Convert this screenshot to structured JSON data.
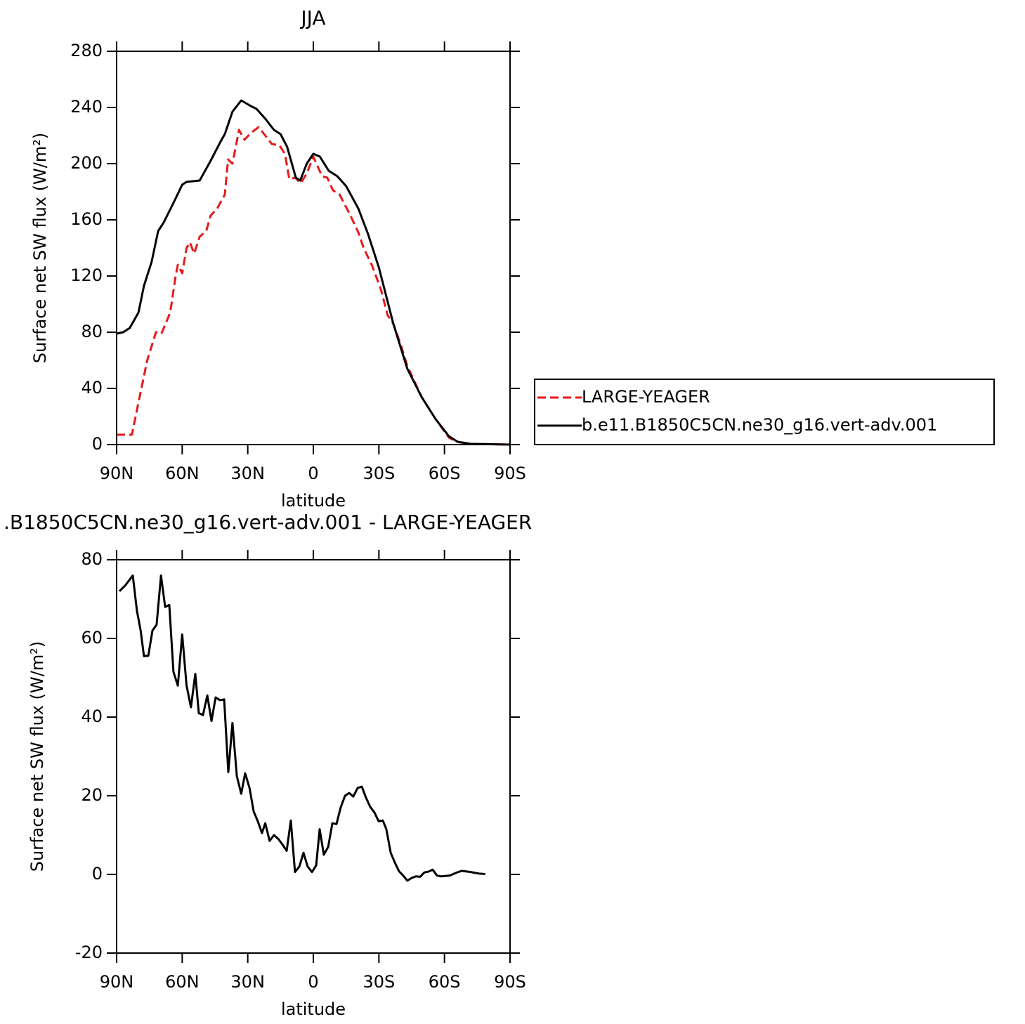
{
  "chart_data": [
    {
      "type": "line",
      "title": "JJA",
      "x_label": "latitude",
      "y_label": "Surface net SW flux (W/m²)",
      "xlim": [
        90,
        -90
      ],
      "xticks": [
        {
          "value": 90,
          "label": "90N"
        },
        {
          "value": 60,
          "label": "60N"
        },
        {
          "value": 30,
          "label": "30N"
        },
        0,
        {
          "value": -30,
          "label": "30S"
        },
        {
          "value": -60,
          "label": "60S"
        },
        {
          "value": -90,
          "label": "90S"
        }
      ],
      "ylim": [
        0,
        280
      ],
      "yticks": [
        0,
        40,
        80,
        120,
        160,
        200,
        240,
        280
      ],
      "legend": "right",
      "series": [
        {
          "name": "LARGE-YEAGER",
          "color": "#e41a1c",
          "style": "dashed",
          "x": [
            90,
            85,
            83,
            80,
            76,
            72,
            69.5,
            66,
            65.2,
            63,
            62,
            60,
            58,
            56.5,
            54.5,
            52,
            49,
            47,
            44,
            40.5,
            39,
            37,
            34,
            31.5,
            28.5,
            25,
            22,
            19,
            15.5,
            13,
            11,
            8.3,
            5.8,
            3,
            0,
            -4,
            -6.4,
            -9,
            -12,
            -17,
            -20.6,
            -23,
            -27,
            -31,
            -34,
            -36.6,
            -40,
            -43,
            -49.5,
            -56,
            -62,
            -65.6,
            -72,
            -90
          ],
          "values": [
            7,
            7,
            7,
            30,
            60,
            80,
            79,
            92,
            97,
            120,
            128,
            122,
            140,
            144,
            136,
            148,
            152,
            163,
            168,
            178,
            203,
            200,
            224,
            217,
            222,
            226,
            220,
            214,
            213,
            207,
            189,
            190,
            186,
            193,
            205,
            191,
            190,
            181,
            178,
            163,
            151,
            140,
            127,
            110,
            92,
            86,
            71,
            56,
            34,
            18,
            5,
            2,
            0.5,
            0
          ]
        },
        {
          "name": "b.e11.B1850C5CN.ne30_g16.vert-adv.001",
          "color": "#000000",
          "style": "solid",
          "x": [
            90,
            87,
            84,
            80,
            77.5,
            74,
            71,
            68.5,
            64,
            60,
            58,
            52,
            47,
            42,
            40.5,
            37,
            33,
            28.6,
            26,
            22,
            18,
            15,
            12,
            8,
            6,
            3,
            0,
            -3,
            -7,
            -11,
            -15,
            -20.6,
            -25,
            -30,
            -36.6,
            -43,
            -49.5,
            -56,
            -62,
            -66,
            -72,
            -90
          ],
          "values": [
            79,
            80,
            83,
            94,
            113,
            130,
            152,
            158,
            172,
            185,
            187,
            188,
            202,
            217,
            221,
            237,
            245,
            241,
            239,
            232,
            224,
            221,
            212,
            190,
            188,
            200,
            207,
            205,
            195,
            191,
            184,
            168,
            150,
            126,
            86,
            54,
            34,
            18,
            6,
            2,
            0.5,
            0
          ]
        }
      ]
    },
    {
      "type": "line",
      "title": ".B1850C5CN.ne30_g16.vert-adv.001 - LARGE-YEAGER",
      "x_label": "latitude",
      "y_label": "Surface net SW flux (W/m²)",
      "xlim": [
        90,
        -90
      ],
      "xticks": [
        {
          "value": 90,
          "label": "90N"
        },
        {
          "value": 60,
          "label": "60N"
        },
        {
          "value": 30,
          "label": "30N"
        },
        0,
        {
          "value": -30,
          "label": "30S"
        },
        {
          "value": -60,
          "label": "60S"
        },
        {
          "value": -90,
          "label": "90S"
        }
      ],
      "ylim": [
        -20,
        80
      ],
      "yticks": [
        -20,
        0,
        20,
        40,
        60,
        80
      ],
      "series": [
        {
          "color": "#000000",
          "style": "solid",
          "x": [
            88.7,
            86,
            82.6,
            80.7,
            79,
            77.5,
            75.5,
            73.6,
            71.7,
            69.7,
            67.8,
            65.9,
            64,
            62,
            60,
            58,
            56,
            54,
            52.4,
            50.5,
            48.5,
            46.6,
            44.7,
            42.7,
            40.8,
            38.9,
            37,
            35,
            33,
            31.2,
            29.2,
            27.3,
            25.4,
            23.5,
            22,
            20,
            18,
            16,
            14,
            12.2,
            10.3,
            8.4,
            6.4,
            4.5,
            2.6,
            0.6,
            -1.3,
            -2.9,
            -4.8,
            -6.8,
            -8.7,
            -10.6,
            -12.5,
            -14.5,
            -16.4,
            -18.3,
            -20.3,
            -22.2,
            -24.1,
            -26,
            -28,
            -29.9,
            -31.8,
            -33.4,
            -35.4,
            -37.3,
            -39.2,
            -41.1,
            -43,
            -45,
            -46.9,
            -48.9,
            -50.8,
            -52.7,
            -54.6,
            -56.6,
            -58.5,
            -62.4,
            -66.2,
            -68,
            -72,
            -75.9,
            -78.7
          ],
          "values": [
            72,
            73.5,
            76,
            67,
            62,
            55.5,
            55.6,
            62,
            63.5,
            76,
            68,
            68.5,
            51.5,
            48,
            61,
            48,
            42.5,
            51,
            41,
            40.5,
            45.5,
            39,
            45,
            44.3,
            44.5,
            26,
            38.5,
            25,
            20.5,
            25.7,
            22,
            16,
            13.5,
            10.5,
            13,
            8.5,
            10,
            9,
            7.5,
            6,
            13.7,
            0.6,
            2,
            5.5,
            2,
            0.6,
            2.3,
            11.5,
            5,
            7,
            13,
            12.8,
            17,
            20,
            20.7,
            19.8,
            22,
            22.3,
            19.5,
            17.2,
            15.7,
            13.5,
            13.7,
            11.5,
            5.5,
            3,
            0.8,
            -0.3,
            -1.6,
            -0.9,
            -0.5,
            -0.6,
            0.5,
            0.7,
            1.2,
            -0.3,
            -0.5,
            -0.3,
            0.6,
            0.9,
            0.6,
            0.2,
            0.1
          ]
        }
      ]
    }
  ]
}
